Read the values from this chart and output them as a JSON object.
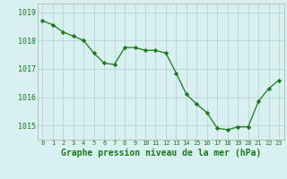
{
  "x": [
    0,
    1,
    2,
    3,
    4,
    5,
    6,
    7,
    8,
    9,
    10,
    11,
    12,
    13,
    14,
    15,
    16,
    17,
    18,
    19,
    20,
    21,
    22,
    23
  ],
  "y": [
    1018.7,
    1018.55,
    1018.3,
    1018.15,
    1018.0,
    1017.55,
    1017.2,
    1017.15,
    1017.75,
    1017.75,
    1017.65,
    1017.65,
    1017.55,
    1016.85,
    1016.1,
    1015.75,
    1015.45,
    1014.9,
    1014.85,
    1014.95,
    1014.95,
    1015.85,
    1016.3,
    1016.6
  ],
  "line_color": "#1a7a1a",
  "marker_color": "#1a7a1a",
  "bg_color": "#d8f0f0",
  "grid_color": "#b8d4d4",
  "xlabel": "Graphe pression niveau de la mer (hPa)",
  "xlabel_color": "#1a7a1a",
  "tick_color": "#1a7a1a",
  "ytick_values": [
    1015,
    1016,
    1017,
    1018,
    1019
  ],
  "ylim": [
    1014.5,
    1019.3
  ],
  "xlim": [
    -0.5,
    23.5
  ],
  "xtick_values": [
    0,
    1,
    2,
    3,
    4,
    5,
    6,
    7,
    8,
    9,
    10,
    11,
    12,
    13,
    14,
    15,
    16,
    17,
    18,
    19,
    20,
    21,
    22,
    23
  ]
}
